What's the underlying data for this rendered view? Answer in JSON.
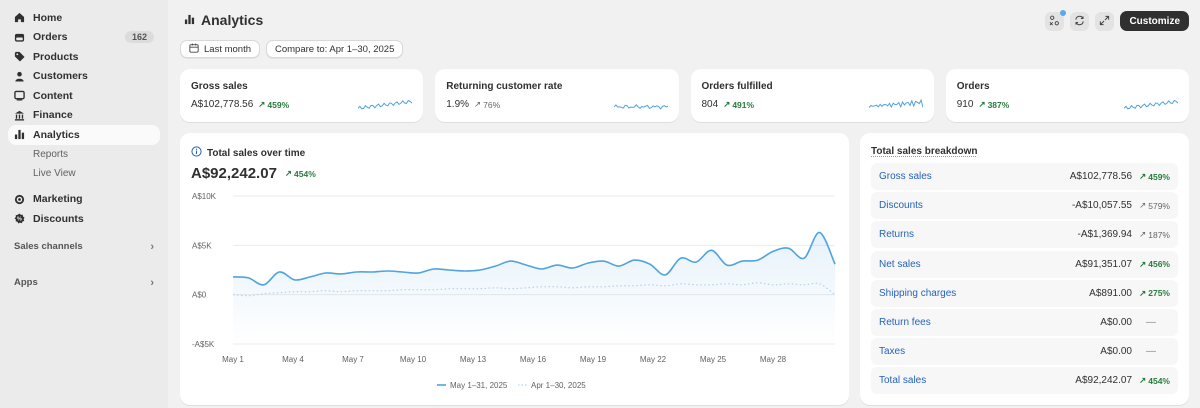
{
  "sidebar": {
    "items": [
      {
        "label": "Home",
        "icon": "home-icon"
      },
      {
        "label": "Orders",
        "icon": "orders-icon",
        "badge": "162"
      },
      {
        "label": "Products",
        "icon": "tag-icon"
      },
      {
        "label": "Customers",
        "icon": "person-icon"
      },
      {
        "label": "Content",
        "icon": "content-icon"
      },
      {
        "label": "Finance",
        "icon": "bank-icon"
      },
      {
        "label": "Analytics",
        "icon": "bar-chart-icon"
      }
    ],
    "sub_items": [
      "Reports",
      "Live View"
    ],
    "items2": [
      {
        "label": "Marketing",
        "icon": "target-icon"
      },
      {
        "label": "Discounts",
        "icon": "discount-icon"
      }
    ],
    "sections": [
      "Sales channels",
      "Apps"
    ]
  },
  "header": {
    "title": "Analytics",
    "customize_label": "Customize"
  },
  "filters": {
    "date_label": "Last month",
    "compare_label": "Compare to: Apr 1–30, 2025"
  },
  "kpis": [
    {
      "label": "Gross sales",
      "value": "A$102,778.56",
      "delta": "459%",
      "positive": true
    },
    {
      "label": "Returning customer rate",
      "value": "1.9%",
      "delta": "76%",
      "positive": false
    },
    {
      "label": "Orders fulfilled",
      "value": "804",
      "delta": "491%",
      "positive": true
    },
    {
      "label": "Orders",
      "value": "910",
      "delta": "387%",
      "positive": true
    }
  ],
  "chart": {
    "title": "Total sales over time",
    "total": "A$92,242.07",
    "delta": "454%",
    "legend": [
      "May 1–31, 2025",
      "Apr 1–30, 2025"
    ]
  },
  "chart_data": {
    "type": "line",
    "y_ticks": [
      "A$10K",
      "A$5K",
      "A$0",
      "-A$5K"
    ],
    "ylim": [
      -5000,
      10000
    ],
    "x_ticks": [
      "May 1",
      "May 4",
      "May 7",
      "May 10",
      "May 13",
      "May 16",
      "May 19",
      "May 22",
      "May 25",
      "May 28"
    ],
    "series": [
      {
        "name": "May 1–31, 2025",
        "color": "#4fa3e0",
        "values": [
          1800,
          1700,
          1000,
          2300,
          1500,
          1800,
          2200,
          2100,
          2300,
          2300,
          2400,
          2300,
          2200,
          2600,
          2500,
          2400,
          2500,
          2900,
          3400,
          3000,
          2600,
          3000,
          2700,
          3200,
          3400,
          2900,
          3500,
          3100,
          2000,
          3700,
          3300,
          4500,
          3000,
          3400,
          3500,
          4400,
          4700,
          3700,
          6300,
          3100
        ]
      },
      {
        "name": "Apr 1–30, 2025",
        "color": "#b9d6ee",
        "values": [
          0,
          -100,
          100,
          200,
          300,
          300,
          400,
          300,
          400,
          400,
          400,
          500,
          500,
          500,
          600,
          600,
          600,
          700,
          600,
          700,
          800,
          800,
          700,
          800,
          800,
          900,
          900,
          1000,
          900,
          1100,
          1000,
          1000,
          1100,
          1000,
          1200,
          1000,
          1100,
          1000,
          1100,
          0
        ]
      }
    ]
  },
  "breakdown": {
    "title": "Total sales breakdown",
    "rows": [
      {
        "label": "Gross sales",
        "value": "A$102,778.56",
        "delta": "459%",
        "type": "green"
      },
      {
        "label": "Discounts",
        "value": "-A$10,057.55",
        "delta": "579%",
        "type": "gray"
      },
      {
        "label": "Returns",
        "value": "-A$1,369.94",
        "delta": "187%",
        "type": "gray"
      },
      {
        "label": "Net sales",
        "value": "A$91,351.07",
        "delta": "456%",
        "type": "green"
      },
      {
        "label": "Shipping charges",
        "value": "A$891.00",
        "delta": "275%",
        "type": "green"
      },
      {
        "label": "Return fees",
        "value": "A$0.00",
        "delta": "—",
        "type": "dash"
      },
      {
        "label": "Taxes",
        "value": "A$0.00",
        "delta": "—",
        "type": "dash"
      },
      {
        "label": "Total sales",
        "value": "A$92,242.07",
        "delta": "454%",
        "type": "green"
      }
    ]
  }
}
